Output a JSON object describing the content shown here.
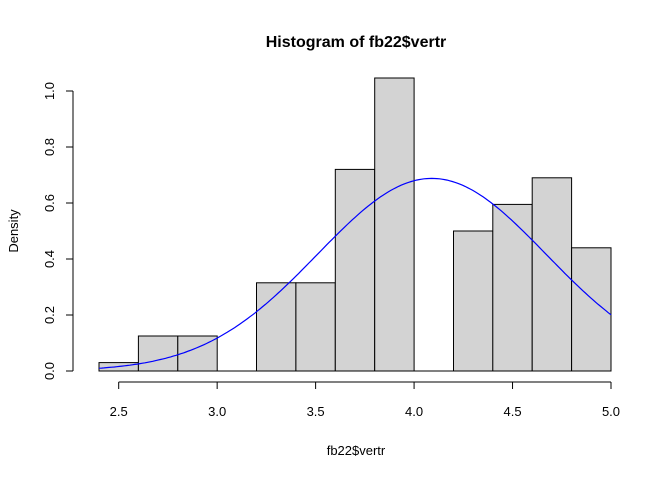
{
  "chart_data": {
    "type": "bar",
    "title": "Histogram of fb22$vertr",
    "xlabel": "fb22$vertr",
    "ylabel": "Density",
    "xlim": [
      2.4,
      5.0
    ],
    "ylim": [
      0,
      1.05
    ],
    "x_ticks": [
      "2.5",
      "3.0",
      "3.5",
      "4.0",
      "4.5",
      "5.0"
    ],
    "y_ticks": [
      "0.0",
      "0.2",
      "0.4",
      "0.6",
      "0.8",
      "1.0"
    ],
    "bar_color": "#d3d3d3",
    "bins": [
      {
        "x0": 2.4,
        "x1": 2.6,
        "density": 0.03
      },
      {
        "x0": 2.6,
        "x1": 2.8,
        "density": 0.125
      },
      {
        "x0": 2.8,
        "x1": 3.0,
        "density": 0.125
      },
      {
        "x0": 3.0,
        "x1": 3.2,
        "density": 0.0
      },
      {
        "x0": 3.2,
        "x1": 3.4,
        "density": 0.315
      },
      {
        "x0": 3.4,
        "x1": 3.6,
        "density": 0.315
      },
      {
        "x0": 3.6,
        "x1": 3.8,
        "density": 0.72
      },
      {
        "x0": 3.8,
        "x1": 4.0,
        "density": 1.05
      },
      {
        "x0": 4.0,
        "x1": 4.2,
        "density": 0.0
      },
      {
        "x0": 4.2,
        "x1": 4.4,
        "density": 0.5
      },
      {
        "x0": 4.4,
        "x1": 4.6,
        "density": 0.595
      },
      {
        "x0": 4.6,
        "x1": 4.8,
        "density": 0.69
      },
      {
        "x0": 4.8,
        "x1": 5.0,
        "density": 0.44
      }
    ],
    "curve": {
      "type": "normal-density",
      "mean": 4.09,
      "sd": 0.58,
      "color": "#0000ff"
    }
  }
}
